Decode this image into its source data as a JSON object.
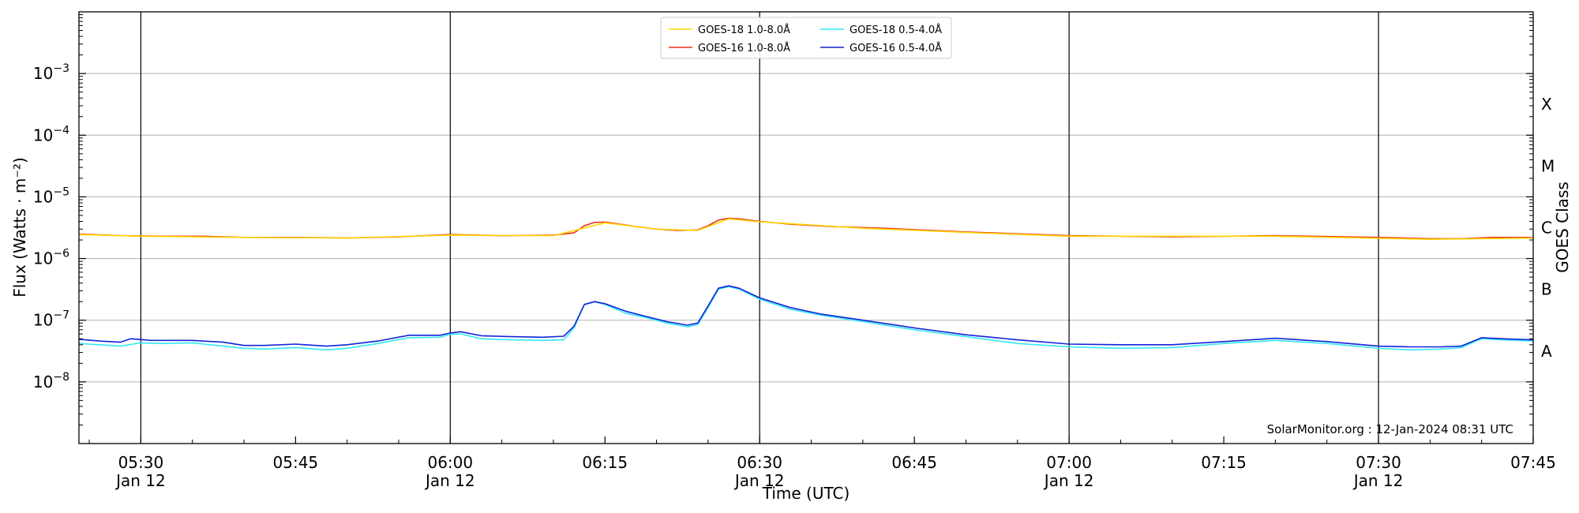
{
  "chart_data": {
    "type": "line",
    "xlabel": "Time (UTC)",
    "ylabel": "Flux (Watts · m⁻²)",
    "right_label": "GOES Class",
    "credit": "SolarMonitor.org : 12-Jan-2024 08:31 UTC",
    "y_scale": "log",
    "ylim": [
      1e-09,
      0.01
    ],
    "xlim": [
      "05:24",
      "07:45"
    ],
    "grid": "horizontal at decades; vertical at 30-minute marks",
    "legend_placement": "top-center",
    "x_ticks": [
      {
        "t": "05:30",
        "line1": "05:30",
        "line2": "Jan 12"
      },
      {
        "t": "05:45",
        "line1": "05:45",
        "line2": ""
      },
      {
        "t": "06:00",
        "line1": "06:00",
        "line2": "Jan 12"
      },
      {
        "t": "06:15",
        "line1": "06:15",
        "line2": ""
      },
      {
        "t": "06:30",
        "line1": "06:30",
        "line2": "Jan 12"
      },
      {
        "t": "06:45",
        "line1": "06:45",
        "line2": ""
      },
      {
        "t": "07:00",
        "line1": "07:00",
        "line2": "Jan 12"
      },
      {
        "t": "07:15",
        "line1": "07:15",
        "line2": ""
      },
      {
        "t": "07:30",
        "line1": "07:30",
        "line2": "Jan 12"
      },
      {
        "t": "07:45",
        "line1": "07:45",
        "line2": ""
      }
    ],
    "y_ticks": [
      {
        "value": 1e-08,
        "base": "10",
        "exp": "−8"
      },
      {
        "value": 1e-07,
        "base": "10",
        "exp": "−7"
      },
      {
        "value": 1e-06,
        "base": "10",
        "exp": "−6"
      },
      {
        "value": 1e-05,
        "base": "10",
        "exp": "−5"
      },
      {
        "value": 0.0001,
        "base": "10",
        "exp": "−4"
      },
      {
        "value": 0.001,
        "base": "10",
        "exp": "−3"
      }
    ],
    "goes_classes": [
      {
        "label": "A",
        "value": 3.16e-08
      },
      {
        "label": "B",
        "value": 3.16e-07
      },
      {
        "label": "C",
        "value": 3.16e-06
      },
      {
        "label": "M",
        "value": 3.16e-05
      },
      {
        "label": "X",
        "value": 0.000316
      }
    ],
    "vertical_lines": [
      "05:30",
      "06:00",
      "06:30",
      "07:00",
      "07:30"
    ],
    "legend": [
      {
        "label": "GOES-18 1.0-8.0Å",
        "color": "#ffd700"
      },
      {
        "label": "GOES-16 1.0-8.0Å",
        "color": "#e8311a"
      },
      {
        "label": "GOES-18 0.5-4.0Å",
        "color": "#33e8f2"
      },
      {
        "label": "GOES-16 0.5-4.0Å",
        "color": "#1024d8"
      }
    ],
    "series": [
      {
        "name": "GOES-16 1.0-8.0Å",
        "color": "#e8311a",
        "points": [
          [
            "05:24",
            2.5e-06
          ],
          [
            "05:28",
            2.35e-06
          ],
          [
            "05:32",
            2.3e-06
          ],
          [
            "05:36",
            2.3e-06
          ],
          [
            "05:40",
            2.2e-06
          ],
          [
            "05:45",
            2.2e-06
          ],
          [
            "05:50",
            2.15e-06
          ],
          [
            "05:55",
            2.25e-06
          ],
          [
            "06:00",
            2.45e-06
          ],
          [
            "06:05",
            2.35e-06
          ],
          [
            "06:10",
            2.4e-06
          ],
          [
            "06:12",
            2.6e-06
          ],
          [
            "06:13",
            3.4e-06
          ],
          [
            "06:14",
            3.85e-06
          ],
          [
            "06:15",
            3.9e-06
          ],
          [
            "06:16",
            3.7e-06
          ],
          [
            "06:18",
            3.3e-06
          ],
          [
            "06:20",
            3e-06
          ],
          [
            "06:22",
            2.85e-06
          ],
          [
            "06:24",
            2.9e-06
          ],
          [
            "06:25",
            3.4e-06
          ],
          [
            "06:26",
            4.2e-06
          ],
          [
            "06:27",
            4.5e-06
          ],
          [
            "06:28",
            4.4e-06
          ],
          [
            "06:30",
            4e-06
          ],
          [
            "06:33",
            3.6e-06
          ],
          [
            "06:37",
            3.3e-06
          ],
          [
            "06:42",
            3.1e-06
          ],
          [
            "06:50",
            2.7e-06
          ],
          [
            "07:00",
            2.35e-06
          ],
          [
            "07:10",
            2.25e-06
          ],
          [
            "07:20",
            2.35e-06
          ],
          [
            "07:30",
            2.2e-06
          ],
          [
            "07:35",
            2.1e-06
          ],
          [
            "07:38",
            2.1e-06
          ],
          [
            "07:41",
            2.2e-06
          ],
          [
            "07:45",
            2.2e-06
          ]
        ]
      },
      {
        "name": "GOES-18 1.0-8.0Å",
        "color": "#ffd700",
        "points": [
          [
            "05:24",
            2.45e-06
          ],
          [
            "05:30",
            2.3e-06
          ],
          [
            "05:40",
            2.2e-06
          ],
          [
            "05:50",
            2.15e-06
          ],
          [
            "06:00",
            2.4e-06
          ],
          [
            "06:10",
            2.35e-06
          ],
          [
            "06:15",
            3.8e-06
          ],
          [
            "06:20",
            3e-06
          ],
          [
            "06:24",
            2.85e-06
          ],
          [
            "06:27",
            4.4e-06
          ],
          [
            "06:30",
            3.95e-06
          ],
          [
            "06:40",
            3.1e-06
          ],
          [
            "06:50",
            2.65e-06
          ],
          [
            "07:00",
            2.3e-06
          ],
          [
            "07:20",
            2.3e-06
          ],
          [
            "07:35",
            2.05e-06
          ],
          [
            "07:45",
            2.15e-06
          ]
        ]
      },
      {
        "name": "GOES-18 0.5-4.0Å",
        "color": "#33e8f2",
        "points": [
          [
            "05:24",
            4.2e-08
          ],
          [
            "05:26",
            4e-08
          ],
          [
            "05:28",
            3.8e-08
          ],
          [
            "05:30",
            4.3e-08
          ],
          [
            "05:32",
            4.2e-08
          ],
          [
            "05:35",
            4.3e-08
          ],
          [
            "05:38",
            3.8e-08
          ],
          [
            "05:40",
            3.5e-08
          ],
          [
            "05:42",
            3.4e-08
          ],
          [
            "05:45",
            3.6e-08
          ],
          [
            "05:48",
            3.3e-08
          ],
          [
            "05:50",
            3.5e-08
          ],
          [
            "05:53",
            4.2e-08
          ],
          [
            "05:56",
            5.2e-08
          ],
          [
            "05:59",
            5.3e-08
          ],
          [
            "06:00",
            5.9e-08
          ],
          [
            "06:01",
            6e-08
          ],
          [
            "06:03",
            5e-08
          ],
          [
            "06:06",
            4.8e-08
          ],
          [
            "06:09",
            4.7e-08
          ],
          [
            "06:11",
            4.8e-08
          ],
          [
            "06:12",
            7.5e-08
          ],
          [
            "06:13",
            1.8e-07
          ],
          [
            "06:14",
            2e-07
          ],
          [
            "06:15",
            1.8e-07
          ],
          [
            "06:17",
            1.3e-07
          ],
          [
            "06:19",
            1.1e-07
          ],
          [
            "06:21",
            9e-08
          ],
          [
            "06:23",
            7.8e-08
          ],
          [
            "06:24",
            8.5e-08
          ],
          [
            "06:25",
            1.6e-07
          ],
          [
            "06:26",
            3.2e-07
          ],
          [
            "06:27",
            3.5e-07
          ],
          [
            "06:28",
            3.2e-07
          ],
          [
            "06:30",
            2.2e-07
          ],
          [
            "06:33",
            1.5e-07
          ],
          [
            "06:36",
            1.2e-07
          ],
          [
            "06:40",
            9.5e-08
          ],
          [
            "06:45",
            7e-08
          ],
          [
            "06:50",
            5.4e-08
          ],
          [
            "06:55",
            4.2e-08
          ],
          [
            "07:00",
            3.7e-08
          ],
          [
            "07:05",
            3.5e-08
          ],
          [
            "07:10",
            3.6e-08
          ],
          [
            "07:15",
            4.2e-08
          ],
          [
            "07:20",
            4.7e-08
          ],
          [
            "07:25",
            4.2e-08
          ],
          [
            "07:30",
            3.5e-08
          ],
          [
            "07:33",
            3.3e-08
          ],
          [
            "07:36",
            3.4e-08
          ],
          [
            "07:38",
            3.6e-08
          ],
          [
            "07:40",
            5e-08
          ],
          [
            "07:42",
            4.8e-08
          ],
          [
            "07:45",
            4.6e-08
          ]
        ]
      },
      {
        "name": "GOES-16 0.5-4.0Å",
        "color": "#1024d8",
        "points": [
          [
            "05:24",
            4.9e-08
          ],
          [
            "05:26",
            4.6e-08
          ],
          [
            "05:28",
            4.4e-08
          ],
          [
            "05:29",
            5e-08
          ],
          [
            "05:31",
            4.7e-08
          ],
          [
            "05:35",
            4.7e-08
          ],
          [
            "05:38",
            4.4e-08
          ],
          [
            "05:40",
            3.9e-08
          ],
          [
            "05:42",
            3.9e-08
          ],
          [
            "05:45",
            4.1e-08
          ],
          [
            "05:48",
            3.8e-08
          ],
          [
            "05:50",
            4e-08
          ],
          [
            "05:53",
            4.6e-08
          ],
          [
            "05:56",
            5.7e-08
          ],
          [
            "05:59",
            5.7e-08
          ],
          [
            "06:00",
            6.2e-08
          ],
          [
            "06:01",
            6.5e-08
          ],
          [
            "06:03",
            5.6e-08
          ],
          [
            "06:06",
            5.4e-08
          ],
          [
            "06:09",
            5.3e-08
          ],
          [
            "06:11",
            5.5e-08
          ],
          [
            "06:12",
            8e-08
          ],
          [
            "06:13",
            1.8e-07
          ],
          [
            "06:14",
            2e-07
          ],
          [
            "06:15",
            1.85e-07
          ],
          [
            "06:17",
            1.4e-07
          ],
          [
            "06:19",
            1.15e-07
          ],
          [
            "06:21",
            9.5e-08
          ],
          [
            "06:23",
            8.3e-08
          ],
          [
            "06:24",
            9e-08
          ],
          [
            "06:25",
            1.7e-07
          ],
          [
            "06:26",
            3.3e-07
          ],
          [
            "06:27",
            3.6e-07
          ],
          [
            "06:28",
            3.3e-07
          ],
          [
            "06:30",
            2.3e-07
          ],
          [
            "06:33",
            1.6e-07
          ],
          [
            "06:36",
            1.25e-07
          ],
          [
            "06:40",
            1e-07
          ],
          [
            "06:45",
            7.5e-08
          ],
          [
            "06:50",
            5.8e-08
          ],
          [
            "06:55",
            4.8e-08
          ],
          [
            "07:00",
            4.1e-08
          ],
          [
            "07:05",
            4e-08
          ],
          [
            "07:10",
            4e-08
          ],
          [
            "07:15",
            4.5e-08
          ],
          [
            "07:20",
            5.1e-08
          ],
          [
            "07:25",
            4.5e-08
          ],
          [
            "07:30",
            3.8e-08
          ],
          [
            "07:33",
            3.7e-08
          ],
          [
            "07:36",
            3.7e-08
          ],
          [
            "07:38",
            3.8e-08
          ],
          [
            "07:40",
            5.2e-08
          ],
          [
            "07:42",
            5e-08
          ],
          [
            "07:45",
            4.8e-08
          ]
        ]
      }
    ]
  }
}
